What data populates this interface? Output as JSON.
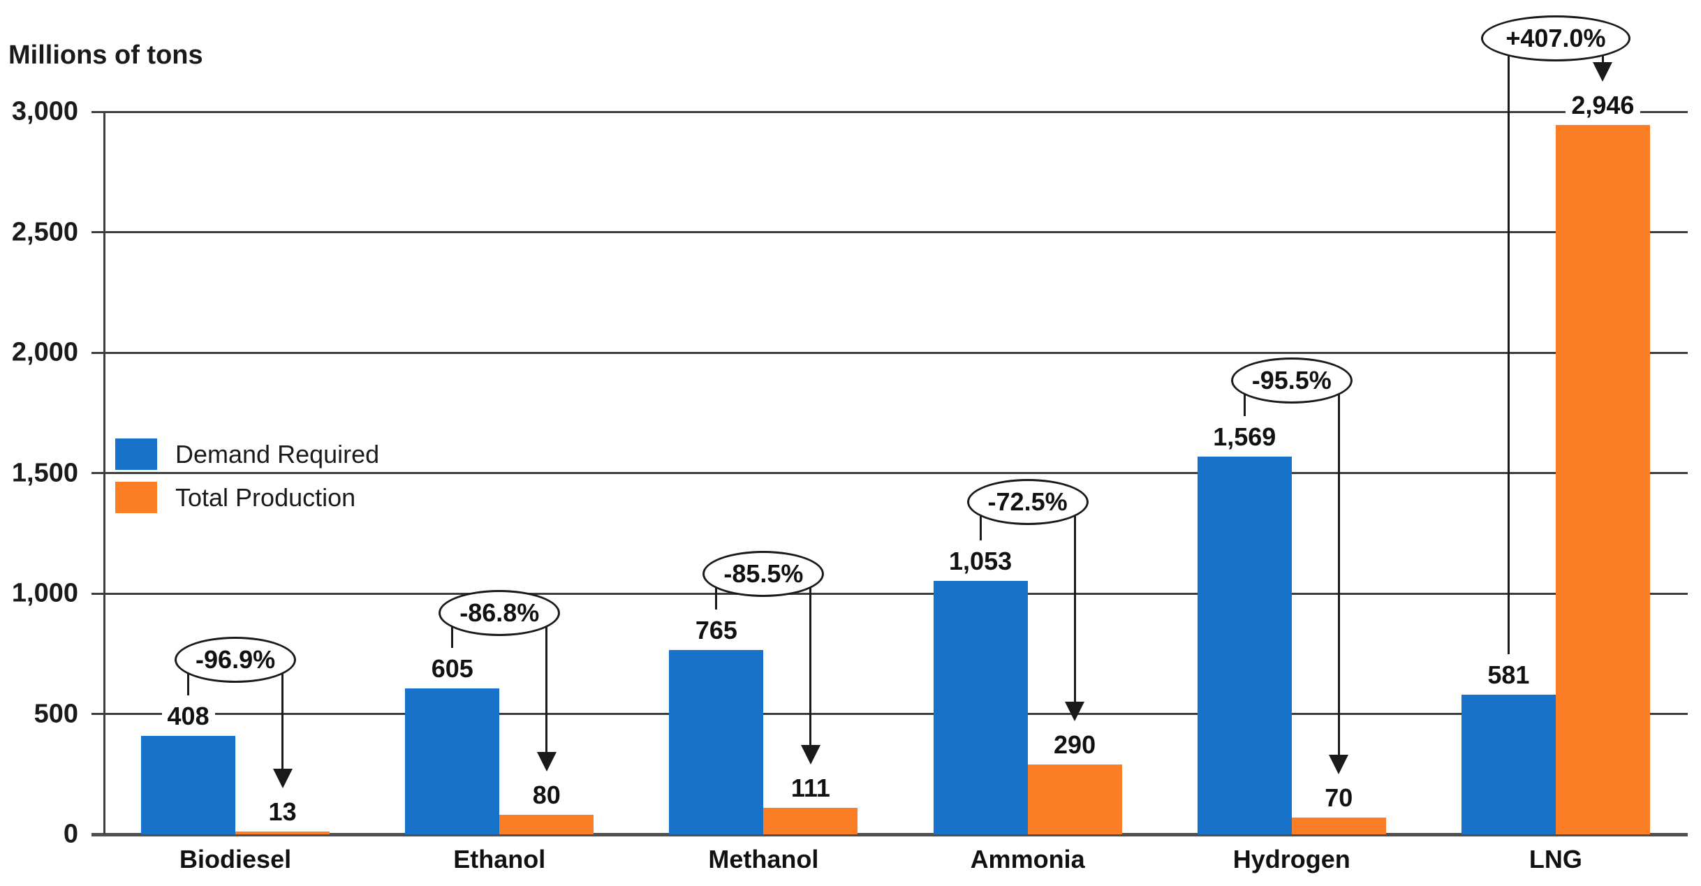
{
  "chart_data": {
    "type": "bar",
    "title": "Millions of tons",
    "ylabel": "Millions of tons",
    "xlabel": "",
    "categories": [
      "Biodiesel",
      "Ethanol",
      "Methanol",
      "Ammonia",
      "Hydrogen",
      "LNG"
    ],
    "series": [
      {
        "name": "Demand Required",
        "color": "#1772C9",
        "values": [
          408,
          605,
          765,
          1053,
          1569,
          581
        ],
        "value_labels": [
          "408",
          "605",
          "765",
          "1,053",
          "1,569",
          "581"
        ]
      },
      {
        "name": "Total Production",
        "color": "#FB7D25",
        "values": [
          13,
          80,
          111,
          290,
          70,
          2946
        ],
        "value_labels": [
          "13",
          "80",
          "111",
          "290",
          "70",
          "2,946"
        ]
      }
    ],
    "annotations": [
      {
        "category": "Biodiesel",
        "text": "-96.9%",
        "y": 725
      },
      {
        "category": "Ethanol",
        "text": "-86.8%",
        "y": 919
      },
      {
        "category": "Methanol",
        "text": "-85.5%",
        "y": 1081
      },
      {
        "category": "Ammonia",
        "text": "-72.5%",
        "y": 1380
      },
      {
        "category": "Hydrogen",
        "text": "-95.5%",
        "y": 1884
      },
      {
        "category": "LNG",
        "text": "+407.0%",
        "y": 3304
      }
    ],
    "ylim": [
      0,
      3000
    ],
    "yticks": [
      {
        "value": 0,
        "label": "0"
      },
      {
        "value": 500,
        "label": "500"
      },
      {
        "value": 1000,
        "label": "1,000"
      },
      {
        "value": 1500,
        "label": "1,500"
      },
      {
        "value": 2000,
        "label": "2,000"
      },
      {
        "value": 2500,
        "label": "2,500"
      },
      {
        "value": 3000,
        "label": "3,000"
      }
    ],
    "grid": true,
    "legend_position": "middle-left"
  }
}
